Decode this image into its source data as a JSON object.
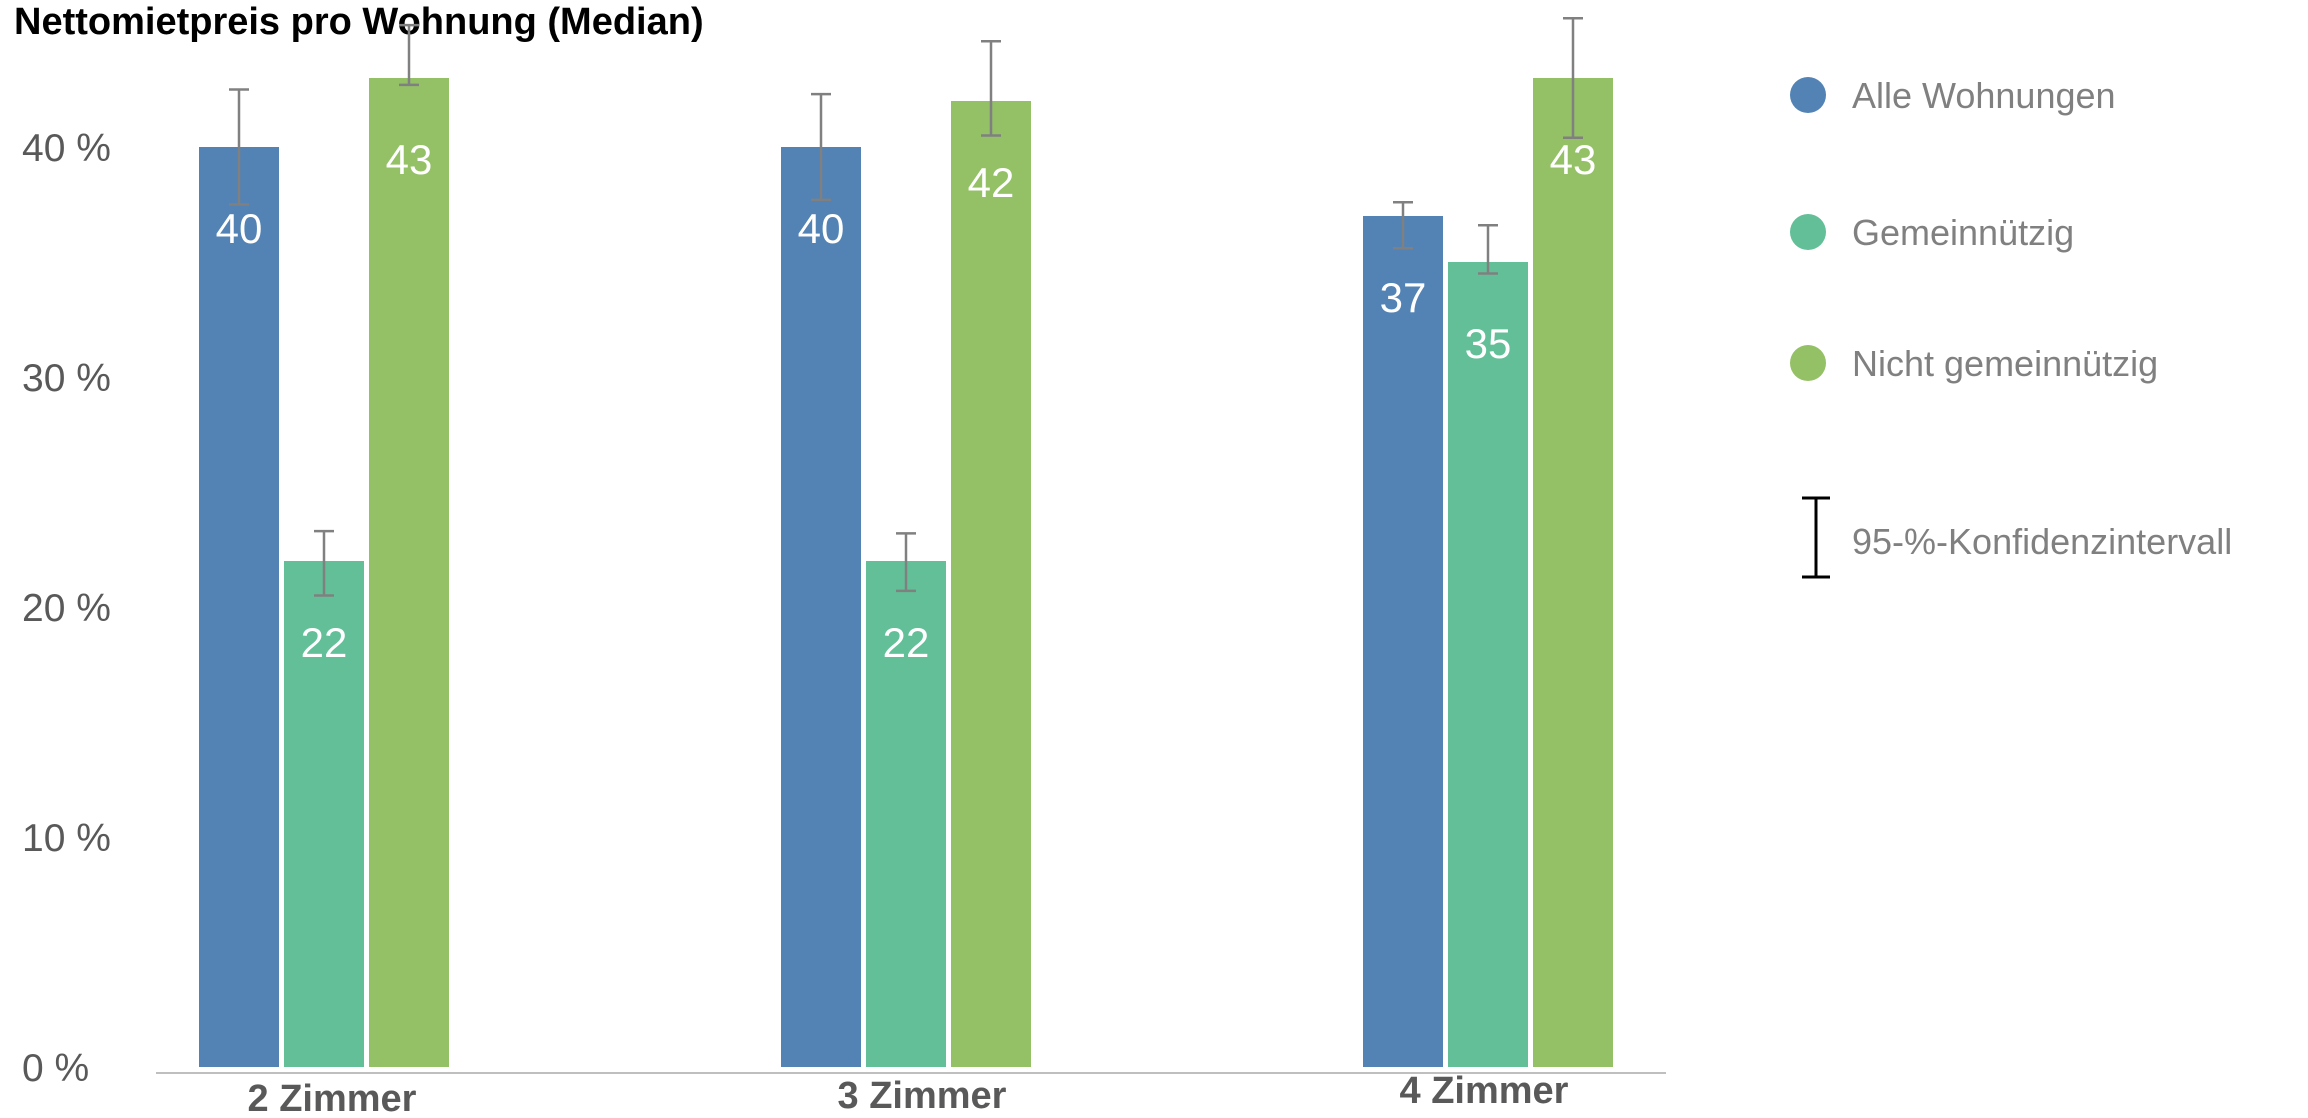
{
  "chart_data": {
    "type": "bar",
    "title": "Nettomietpreis pro Wohnung (Median)",
    "categories": [
      "2 Zimmer",
      "3 Zimmer",
      "4 Zimmer"
    ],
    "series": [
      {
        "name": "Alle Wohnungen",
        "color": "#5283b4",
        "values": [
          40,
          40,
          37
        ],
        "ci_low": [
          37.5,
          37.7,
          35.6
        ],
        "ci_high": [
          42.5,
          42.3,
          37.6
        ],
        "data_labels": [
          "40",
          "40",
          "37"
        ]
      },
      {
        "name": "Gemeinnützig",
        "color": "#62bf97",
        "values": [
          22,
          22,
          35
        ],
        "ci_low": [
          20.5,
          20.7,
          34.5
        ],
        "ci_high": [
          23.3,
          23.2,
          36.6
        ],
        "data_labels": [
          "22",
          "22",
          "35"
        ]
      },
      {
        "name": "Nicht gemeinnützig",
        "color": "#94c066",
        "values": [
          43,
          42,
          43
        ],
        "ci_low": [
          42.7,
          40.5,
          40.4
        ],
        "ci_high": [
          45.3,
          44.6,
          45.6
        ],
        "data_labels": [
          "43",
          "42",
          "43"
        ]
      }
    ],
    "ci_legend_label": "95-%-Konfidenzintervall",
    "y_ticks": [
      0,
      10,
      20,
      30,
      40
    ],
    "y_tick_labels": [
      "0 %",
      "10 %",
      "20 %",
      "30 %",
      "40 %"
    ],
    "ylim": [
      0,
      43
    ],
    "xlabel": "",
    "ylabel": "",
    "grid": false,
    "legend_position": "right",
    "axis_color": "#bfbfbf",
    "error_bar_color": "#808080"
  }
}
